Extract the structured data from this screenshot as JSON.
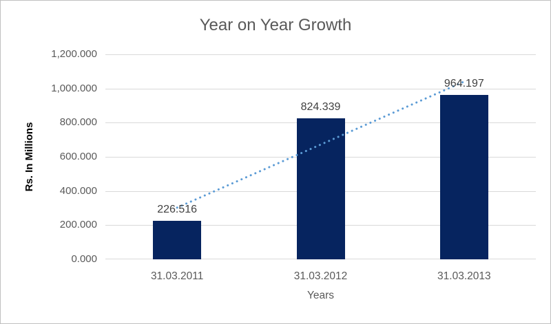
{
  "chart_data": {
    "type": "bar",
    "title": "Year on Year Growth",
    "xlabel": "Years",
    "ylabel": "Rs. In Millions",
    "categories": [
      "31.03.2011",
      "31.03.2012",
      "31.03.2013"
    ],
    "values": [
      226.516,
      824.339,
      964.197
    ],
    "data_labels": [
      "226.516",
      "824.339",
      "964.197"
    ],
    "y_ticks": [
      "1,200.000",
      "1,000.000",
      "800.000",
      "600.000",
      "400.000",
      "200.000",
      "0.000"
    ],
    "ylim": [
      0,
      1200
    ],
    "grid": true,
    "legend": "none",
    "trendline": {
      "type": "linear",
      "style": "dotted",
      "color": "#5B9BD5"
    },
    "colors": {
      "bar": "#06245F",
      "trendline": "#5B9BD5",
      "gridline": "#D9D9D9",
      "axis_text": "#595959",
      "title_text": "#595959",
      "data_label_text": "#404040",
      "y_axis_title_text": "#000000",
      "border": "#BFBFBF",
      "background": "#FFFFFF"
    }
  }
}
